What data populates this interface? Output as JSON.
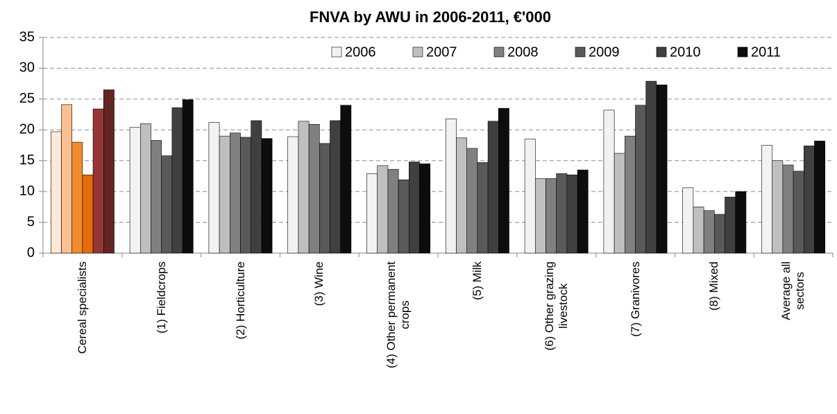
{
  "chart_data": {
    "type": "bar",
    "title": "FNVA by AWU in 2006-2011, €'000",
    "categories": [
      "Cereal specialists",
      "(1) Fieldcrops",
      "(2) Horticulture",
      "(3) Wine",
      "(4) Other permanent\ncrops",
      "(5) Milk",
      "(6) Other grazing\nlivestock",
      "(7) Granivores",
      "(8) Mixed",
      "Average all\nsectors"
    ],
    "series": [
      {
        "name": "2006",
        "color": "#f2f2f2",
        "colors": [
          "#fde9d9",
          "#f2f2f2",
          "#f2f2f2",
          "#f2f2f2",
          "#f2f2f2",
          "#f2f2f2",
          "#f2f2f2",
          "#f2f2f2",
          "#f2f2f2",
          "#f2f2f2"
        ],
        "values": [
          19.7,
          20.4,
          21.2,
          18.9,
          12.9,
          21.8,
          18.5,
          23.2,
          10.6,
          17.5
        ]
      },
      {
        "name": "2007",
        "color": "#bfbfbf",
        "colors": [
          "#fac090",
          "#bfbfbf",
          "#bfbfbf",
          "#bfbfbf",
          "#bfbfbf",
          "#bfbfbf",
          "#bfbfbf",
          "#bfbfbf",
          "#bfbfbf",
          "#bfbfbf"
        ],
        "values": [
          24.1,
          21.0,
          19.0,
          21.4,
          14.2,
          18.7,
          12.1,
          16.2,
          7.5,
          15.0
        ]
      },
      {
        "name": "2008",
        "color": "#808080",
        "colors": [
          "#f28a2e",
          "#808080",
          "#808080",
          "#808080",
          "#808080",
          "#808080",
          "#808080",
          "#808080",
          "#808080",
          "#808080"
        ],
        "values": [
          18.0,
          18.3,
          19.5,
          20.9,
          13.6,
          17.0,
          12.1,
          19.0,
          6.9,
          14.3
        ]
      },
      {
        "name": "2009",
        "color": "#595959",
        "colors": [
          "#e46c0a",
          "#595959",
          "#595959",
          "#595959",
          "#595959",
          "#595959",
          "#595959",
          "#595959",
          "#595959",
          "#595959"
        ],
        "values": [
          12.7,
          15.8,
          18.8,
          17.8,
          11.9,
          14.7,
          12.9,
          24.0,
          6.3,
          13.3
        ]
      },
      {
        "name": "2010",
        "color": "#404040",
        "colors": [
          "#953735",
          "#404040",
          "#404040",
          "#404040",
          "#404040",
          "#404040",
          "#404040",
          "#404040",
          "#404040",
          "#404040"
        ],
        "values": [
          23.4,
          23.6,
          21.5,
          21.5,
          14.8,
          21.4,
          12.7,
          27.9,
          9.1,
          17.4
        ]
      },
      {
        "name": "2011",
        "color": "#0d0d0d",
        "colors": [
          "#632523",
          "#0d0d0d",
          "#0d0d0d",
          "#0d0d0d",
          "#0d0d0d",
          "#0d0d0d",
          "#0d0d0d",
          "#0d0d0d",
          "#0d0d0d",
          "#0d0d0d"
        ],
        "values": [
          26.5,
          24.9,
          18.6,
          24.0,
          14.5,
          23.5,
          13.5,
          27.3,
          10.0,
          18.2
        ]
      }
    ],
    "ylim": [
      0,
      35
    ],
    "yticks": [
      0,
      5,
      10,
      15,
      20,
      25,
      30,
      35
    ],
    "grid": true,
    "legend": "top-right"
  }
}
